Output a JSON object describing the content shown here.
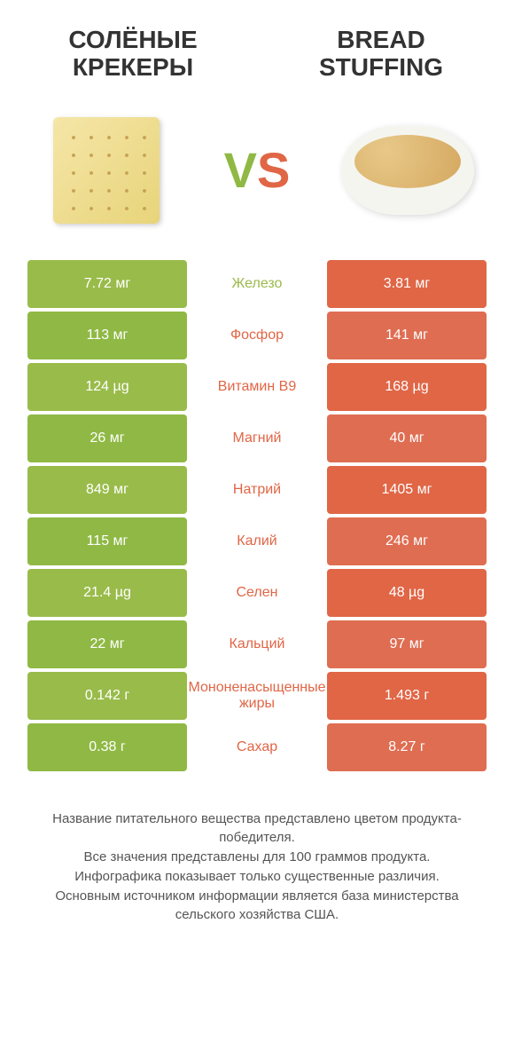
{
  "colors": {
    "left_bar": "#99bb4a",
    "left_bar_alt": "#8fb944",
    "right_bar": "#e06646",
    "right_bar_alt": "#df6d52",
    "mid_left": "#99bb4a",
    "mid_right": "#e06646"
  },
  "header": {
    "left_title": "СОЛЁНЫЕ КРЕКЕРЫ",
    "right_title": "BREAD STUFFING",
    "vs_v": "V",
    "vs_s": "S"
  },
  "rows": [
    {
      "left": "7.72 мг",
      "mid": "Железо",
      "right": "3.81 мг",
      "winner": "left"
    },
    {
      "left": "113 мг",
      "mid": "Фосфор",
      "right": "141 мг",
      "winner": "right"
    },
    {
      "left": "124 µg",
      "mid": "Витамин B9",
      "right": "168 µg",
      "winner": "right"
    },
    {
      "left": "26 мг",
      "mid": "Магний",
      "right": "40 мг",
      "winner": "right"
    },
    {
      "left": "849 мг",
      "mid": "Натрий",
      "right": "1405 мг",
      "winner": "right"
    },
    {
      "left": "115 мг",
      "mid": "Калий",
      "right": "246 мг",
      "winner": "right"
    },
    {
      "left": "21.4 µg",
      "mid": "Селен",
      "right": "48 µg",
      "winner": "right"
    },
    {
      "left": "22 мг",
      "mid": "Кальций",
      "right": "97 мг",
      "winner": "right"
    },
    {
      "left": "0.142 г",
      "mid": "Мононенасыщенные жиры",
      "right": "1.493 г",
      "winner": "right"
    },
    {
      "left": "0.38 г",
      "mid": "Сахар",
      "right": "8.27 г",
      "winner": "right"
    }
  ],
  "footnote": {
    "line1": "Название питательного вещества представлено цветом продукта-победителя.",
    "line2": "Все значения представлены для 100 граммов продукта.",
    "line3": "Инфографика показывает только существенные различия.",
    "line4": "Основным источником информации является база министерства сельского хозяйства США."
  }
}
